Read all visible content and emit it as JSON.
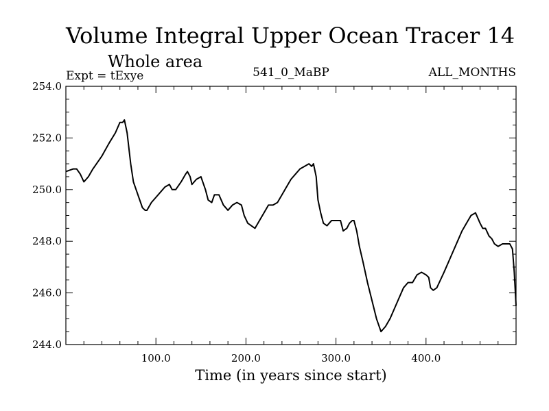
{
  "chart_data": {
    "type": "line",
    "title": "Volume Integral Upper Ocean Tracer 14",
    "subtitle": "Whole area",
    "experiment_label": "Expt = tExye",
    "center_label": "541_0_MaBP",
    "right_label": "ALL_MONTHS",
    "xlabel": "Time (in years since start)",
    "ylabel": "",
    "xlim": [
      0,
      500
    ],
    "ylim": [
      244.0,
      254.0
    ],
    "x_ticks": [
      100,
      200,
      300,
      400
    ],
    "x_tick_labels": [
      "100.0",
      "200.0",
      "300.0",
      "400.0"
    ],
    "y_ticks": [
      244,
      246,
      248,
      250,
      252,
      254
    ],
    "y_tick_labels": [
      "244.0",
      "246.0",
      "248.0",
      "250.0",
      "252.0",
      "254.0"
    ],
    "grid": false,
    "line_color": "#000000",
    "series": [
      {
        "x": [
          0,
          8,
          12,
          16,
          20,
          25,
          30,
          40,
          48,
          55,
          60,
          63,
          65,
          68,
          72,
          75,
          78,
          82,
          85,
          88,
          90,
          95,
          100,
          105,
          110,
          115,
          118,
          122,
          128,
          133,
          135,
          138,
          140,
          145,
          150,
          155,
          158,
          162,
          165,
          170,
          175,
          180,
          185,
          190,
          195,
          198,
          202,
          206,
          210,
          215,
          220,
          225,
          230,
          235,
          240,
          245,
          250,
          255,
          260,
          265,
          270,
          273,
          275,
          278,
          280,
          283,
          286,
          290,
          295,
          300,
          305,
          308,
          312,
          315,
          318,
          320,
          323,
          326,
          330,
          335,
          340,
          345,
          350,
          355,
          360,
          365,
          370,
          375,
          380,
          385,
          390,
          395,
          400,
          403,
          405,
          408,
          412,
          416,
          420,
          425,
          430,
          435,
          440,
          445,
          450,
          455,
          460,
          463,
          466,
          470,
          473,
          476,
          480,
          485,
          490,
          493,
          496,
          498,
          500
        ],
        "y": [
          250.7,
          250.8,
          250.8,
          250.6,
          250.3,
          250.5,
          250.8,
          251.3,
          251.8,
          252.2,
          252.6,
          252.6,
          252.7,
          252.2,
          251.0,
          250.3,
          250.0,
          249.6,
          249.3,
          249.2,
          249.2,
          249.5,
          249.7,
          249.9,
          250.1,
          250.2,
          250.0,
          250.0,
          250.3,
          250.6,
          250.7,
          250.5,
          250.2,
          250.4,
          250.5,
          250.0,
          249.6,
          249.5,
          249.8,
          249.8,
          249.4,
          249.2,
          249.4,
          249.5,
          249.4,
          249.0,
          248.7,
          248.6,
          248.5,
          248.8,
          249.1,
          249.4,
          249.4,
          249.5,
          249.8,
          250.1,
          250.4,
          250.6,
          250.8,
          250.9,
          251.0,
          250.9,
          251.0,
          250.5,
          249.6,
          249.1,
          248.7,
          248.6,
          248.8,
          248.8,
          248.8,
          248.4,
          248.5,
          248.7,
          248.8,
          248.8,
          248.4,
          247.8,
          247.2,
          246.4,
          245.7,
          245.0,
          244.5,
          244.7,
          245.0,
          245.4,
          245.8,
          246.2,
          246.4,
          246.4,
          246.7,
          246.8,
          246.7,
          246.6,
          246.2,
          246.1,
          246.2,
          246.5,
          246.8,
          247.2,
          247.6,
          248.0,
          248.4,
          248.7,
          249.0,
          249.1,
          248.7,
          248.5,
          248.5,
          248.2,
          248.1,
          247.9,
          247.8,
          247.9,
          247.9,
          247.9,
          247.7,
          246.8,
          245.5
        ]
      }
    ]
  }
}
